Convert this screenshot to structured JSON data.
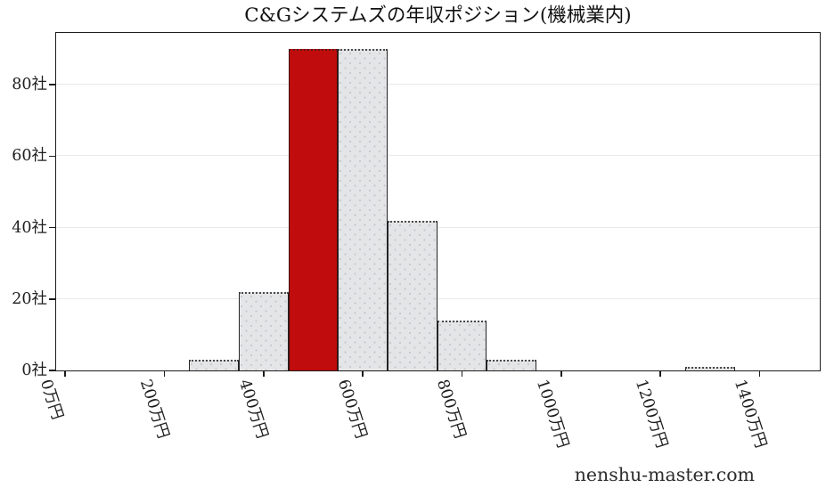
{
  "watermark": "nenshu-master.com",
  "chart_data": {
    "type": "bar",
    "subtype": "histogram",
    "title": "C&Gシステムズの年収ポジション(機械業内)",
    "x_unit": "万円",
    "y_unit": "社",
    "x_tick_labels": [
      "0万円",
      "200万円",
      "400万円",
      "600万円",
      "800万円",
      "1000万円",
      "1200万円",
      "1400万円"
    ],
    "x_tick_values": [
      0,
      200,
      400,
      600,
      800,
      1000,
      1200,
      1400
    ],
    "y_tick_labels": [
      "0社",
      "20社",
      "40社",
      "60社",
      "80社"
    ],
    "y_tick_values": [
      0,
      20,
      40,
      60,
      80
    ],
    "xlim": [
      -18.5,
      1521.5
    ],
    "ylim": [
      0,
      94.5
    ],
    "bin_width": 100,
    "bins": [
      {
        "center": 300,
        "count": 3,
        "highlighted": false
      },
      {
        "center": 400,
        "count": 22,
        "highlighted": false
      },
      {
        "center": 500,
        "count": 90,
        "highlighted": true
      },
      {
        "center": 600,
        "count": 90,
        "highlighted": false
      },
      {
        "center": 700,
        "count": 42,
        "highlighted": false
      },
      {
        "center": 800,
        "count": 14,
        "highlighted": false
      },
      {
        "center": 900,
        "count": 3,
        "highlighted": false
      },
      {
        "center": 1300,
        "count": 1,
        "highlighted": false
      }
    ],
    "grid": "horizontal",
    "legend_position": "none",
    "colors": {
      "highlight_fill": "#c00c0c",
      "bar_fill": "#e4e5e7",
      "bar_hatch_dot": "#c6c8cc",
      "bar_edge": "#242424",
      "grid_line": "#e9e9ea",
      "axis_line": "#1c1c1c",
      "text": "#1a1a1a"
    }
  }
}
